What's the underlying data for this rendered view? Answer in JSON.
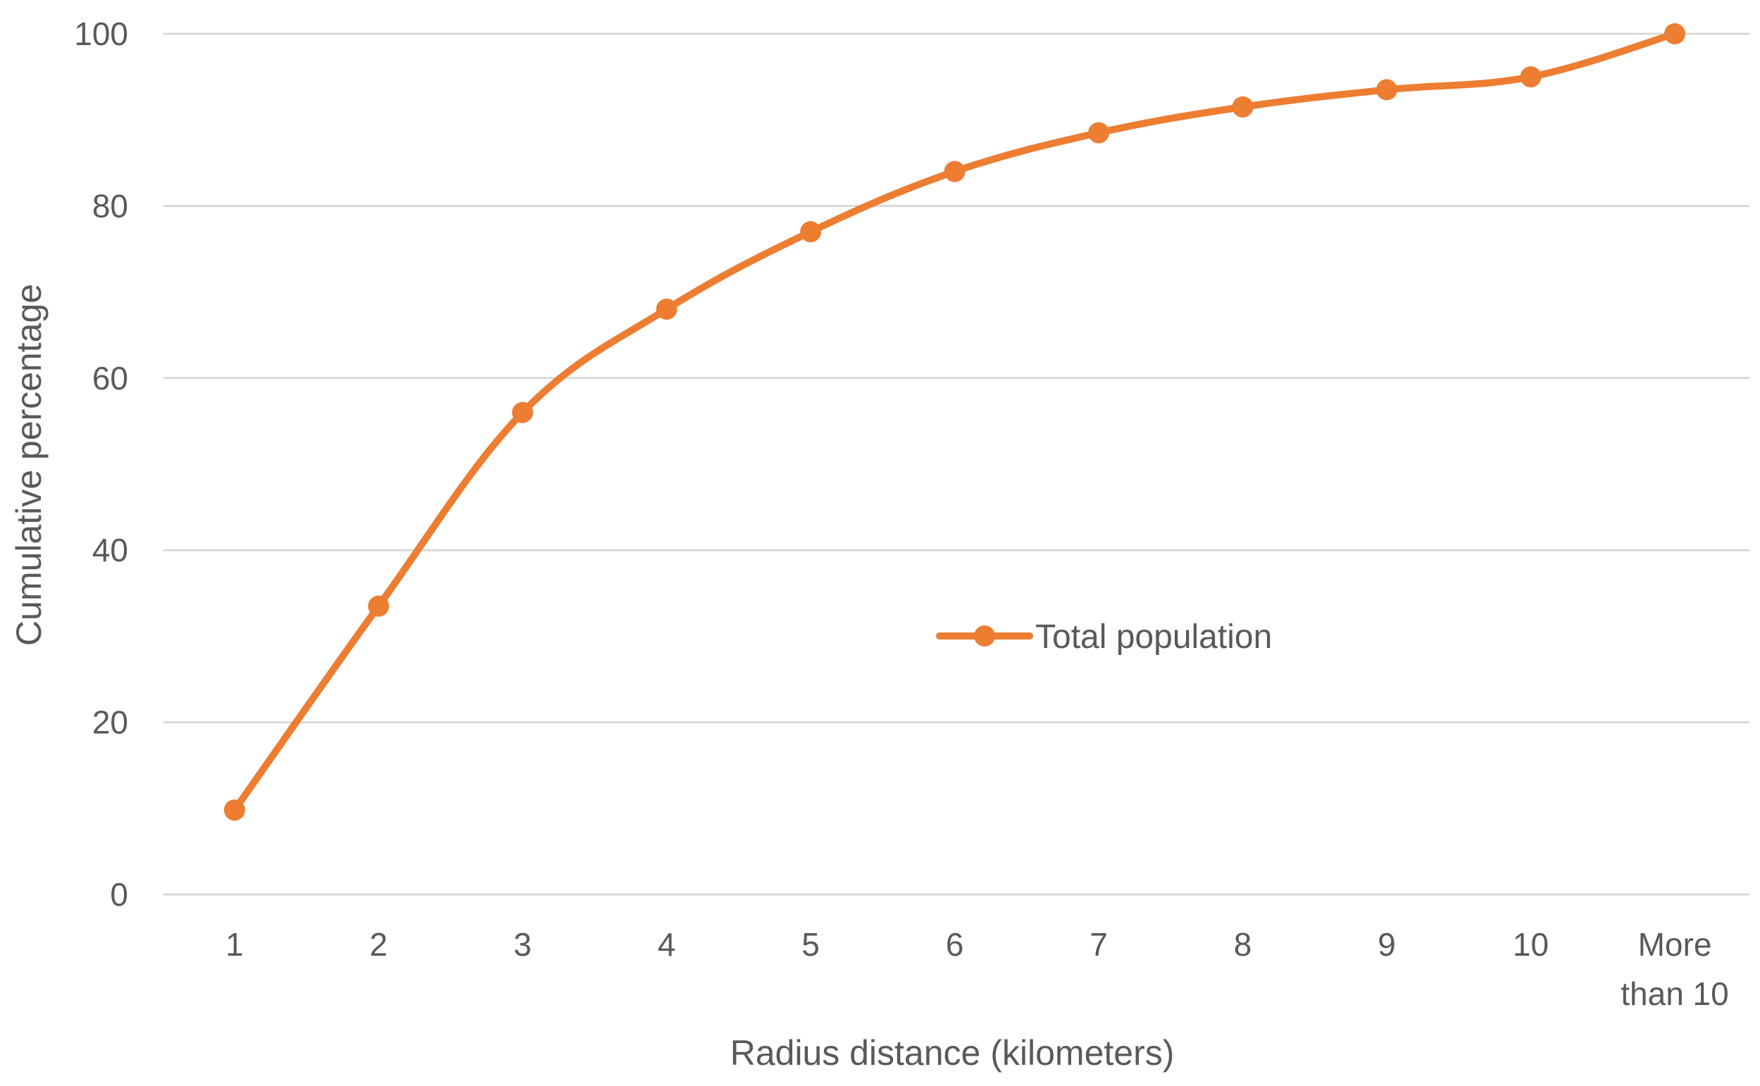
{
  "chart_data": {
    "type": "line",
    "categories": [
      [
        "1"
      ],
      [
        "2"
      ],
      [
        "3"
      ],
      [
        "4"
      ],
      [
        "5"
      ],
      [
        "6"
      ],
      [
        "7"
      ],
      [
        "8"
      ],
      [
        "9"
      ],
      [
        "10"
      ],
      [
        "More",
        "than 10"
      ]
    ],
    "series": [
      {
        "name": "Total population",
        "color": "#ed7d31",
        "values": [
          9.8,
          33.5,
          56,
          68,
          77,
          84,
          88.5,
          91.5,
          93.5,
          95,
          100
        ]
      }
    ],
    "xlabel": "Radius distance (kilometers)",
    "ylabel": "Cumulative percentage",
    "ylim": [
      0,
      100
    ],
    "yticks": [
      0,
      20,
      40,
      60,
      80,
      100
    ],
    "grid": "horizontal",
    "legend": "center"
  }
}
